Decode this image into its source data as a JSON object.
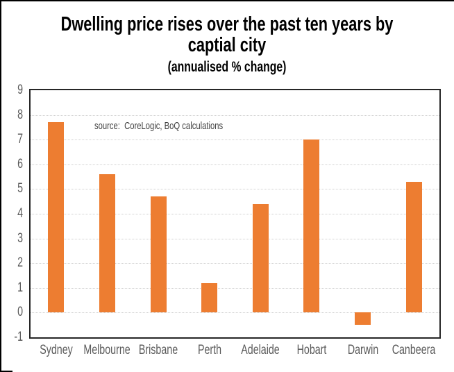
{
  "chart_data": {
    "type": "bar",
    "title_lines": [
      "Dwelling price rises over the past ten years by",
      "captial city"
    ],
    "title": "Dwelling price rises over the past ten years by captial city",
    "subtitle": "(annualised % change)",
    "source_note": "source:  CoreLogic, BoQ calculations",
    "categories": [
      "Sydney",
      "Melbourne",
      "Brisbane",
      "Perth",
      "Adelaide",
      "Hobart",
      "Darwin",
      "Canbeera"
    ],
    "values": [
      7.7,
      5.6,
      4.7,
      1.2,
      4.4,
      7.0,
      -0.5,
      5.3
    ],
    "xlabel": "",
    "ylabel": "",
    "ylim": [
      -1,
      9
    ],
    "yticks": [
      9,
      8,
      7,
      6,
      5,
      4,
      3,
      2,
      1,
      0,
      -1
    ],
    "grid": true,
    "legend_position": "none",
    "colors": {
      "bar": "#ED7D31",
      "plot_border": "#262626",
      "gridline": "#CFCFCF",
      "tick_label": "#595959",
      "title": "#000000",
      "source_note_text": "#3F3F3F"
    }
  }
}
